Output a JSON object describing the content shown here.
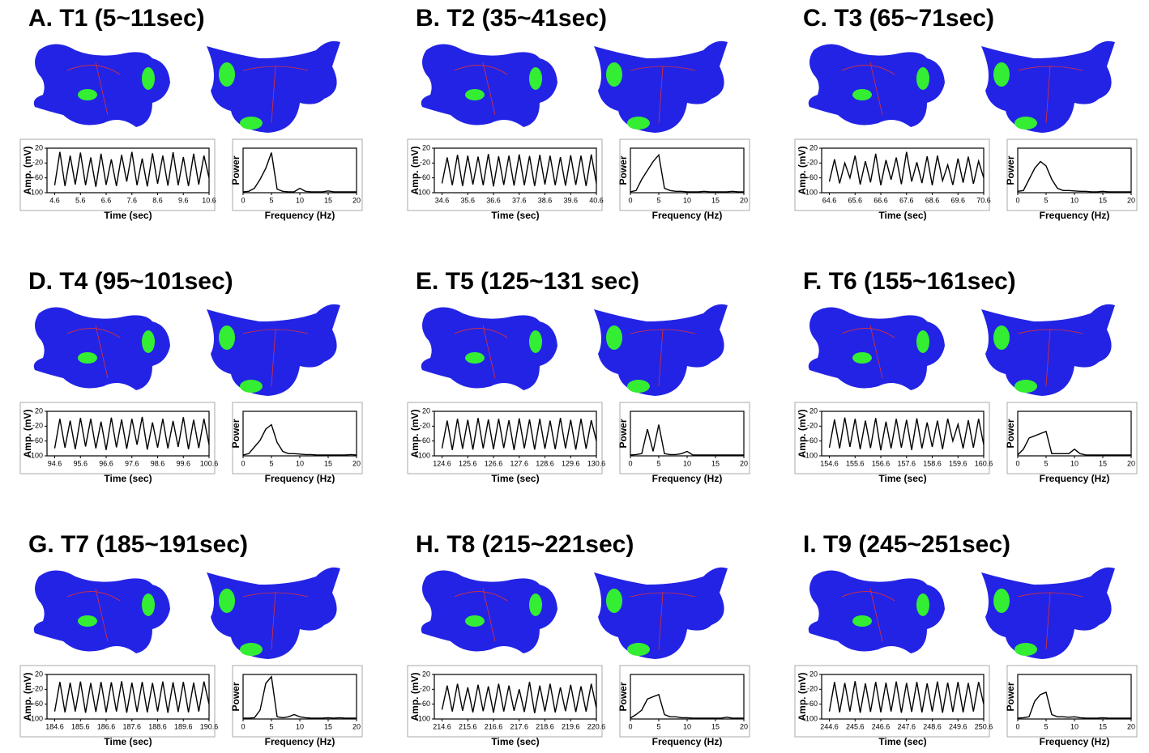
{
  "chart_data": [
    {
      "type": "line",
      "title": "A. T1 (5~11sec)",
      "x": [
        4.6,
        4.8,
        5,
        5.2,
        5.4,
        5.6,
        5.8,
        6,
        6.2,
        6.4,
        6.6,
        6.8,
        7,
        7.2,
        7.4,
        7.6,
        7.8,
        8,
        8.2,
        8.4,
        8.6,
        8.8,
        9,
        9.2,
        9.4,
        9.6,
        9.8,
        10,
        10.2,
        10.4,
        10.6
      ],
      "values": [
        -80,
        10,
        -82,
        0,
        -78,
        8,
        -80,
        -5,
        -84,
        5,
        -79,
        -10,
        -82,
        2,
        -70,
        10,
        -80,
        -8,
        -83,
        6,
        -76,
        0,
        -81,
        9,
        -80,
        -4,
        -82,
        5,
        -78,
        0,
        -60
      ],
      "xlim": [
        4.3,
        10.6
      ],
      "xticks": [
        4.6,
        5.6,
        6.6,
        7.6,
        8.6,
        9.6,
        10.6
      ],
      "ylim": [
        -100,
        20
      ],
      "yticks": [
        20,
        -20,
        -60,
        -100
      ],
      "xlabel": "Time (sec)",
      "ylabel": "Amp. (mV)",
      "color": "#000000"
    },
    {
      "type": "line",
      "x": [
        0,
        1,
        2,
        3,
        4,
        5,
        6,
        7,
        8,
        9,
        10,
        11,
        12,
        13,
        14,
        15,
        16,
        17,
        18,
        19,
        20
      ],
      "values": [
        2,
        3,
        10,
        30,
        55,
        90,
        8,
        3,
        2,
        2,
        10,
        3,
        2,
        2,
        2,
        4,
        2,
        2,
        2,
        2,
        2
      ],
      "xlim": [
        0,
        20
      ],
      "xticks": [
        0,
        5,
        10,
        15,
        20
      ],
      "ylim": [
        0,
        100
      ],
      "xlabel": "Frequency (Hz)",
      "ylabel": "Power",
      "color": "#000000"
    },
    {
      "type": "line",
      "title": "B. T2 (35~41sec)",
      "x": [
        34.6,
        34.8,
        35,
        35.2,
        35.4,
        35.6,
        35.8,
        36,
        36.2,
        36.4,
        36.6,
        36.8,
        37,
        37.2,
        37.4,
        37.6,
        37.8,
        38,
        38.2,
        38.4,
        38.6,
        38.8,
        39,
        39.2,
        39.4,
        39.6,
        39.8,
        40,
        40.2,
        40.4,
        40.6
      ],
      "values": [
        -75,
        -5,
        -80,
        2,
        -82,
        0,
        -78,
        -3,
        -80,
        4,
        -83,
        -2,
        -79,
        0,
        -81,
        3,
        -80,
        -1,
        -82,
        2,
        -78,
        0,
        -80,
        -4,
        -81,
        1,
        -79,
        0,
        -82,
        3,
        -75
      ],
      "xlim": [
        34.3,
        40.6
      ],
      "xticks": [
        34.6,
        35.6,
        36.6,
        37.6,
        38.6,
        39.6,
        40.6
      ],
      "ylim": [
        -100,
        20
      ],
      "yticks": [
        20,
        -20,
        -60,
        -100
      ],
      "xlabel": "Time (sec)",
      "ylabel": "Amp. (mV)",
      "color": "#000000"
    },
    {
      "type": "line",
      "x": [
        0,
        1,
        2,
        3,
        4,
        5,
        6,
        7,
        8,
        9,
        10,
        11,
        12,
        13,
        14,
        15,
        16,
        17,
        18,
        19,
        20
      ],
      "values": [
        2,
        5,
        30,
        50,
        70,
        85,
        10,
        5,
        3,
        3,
        2,
        2,
        2,
        3,
        2,
        2,
        2,
        2,
        3,
        2,
        2
      ],
      "xlim": [
        0,
        20
      ],
      "xticks": [
        0,
        5,
        10,
        15,
        20
      ],
      "ylim": [
        0,
        100
      ],
      "xlabel": "Frequency (Hz)",
      "ylabel": "Power",
      "color": "#000000"
    },
    {
      "type": "line",
      "title": "C. T3 (65~71sec)",
      "x": [
        64.6,
        64.8,
        65,
        65.2,
        65.4,
        65.6,
        65.8,
        66,
        66.2,
        66.4,
        66.6,
        66.8,
        67,
        67.2,
        67.4,
        67.6,
        67.8,
        68,
        68.2,
        68.4,
        68.6,
        68.8,
        69,
        69.2,
        69.4,
        69.6,
        69.8,
        70,
        70.2,
        70.4,
        70.6
      ],
      "values": [
        -70,
        -10,
        -75,
        -20,
        -60,
        0,
        -78,
        -15,
        -72,
        5,
        -80,
        -12,
        -65,
        -5,
        -77,
        10,
        -70,
        -18,
        -74,
        -2,
        -80,
        0,
        -68,
        -25,
        -79,
        -8,
        -73,
        -3,
        -76,
        -15,
        -60
      ],
      "xlim": [
        64.3,
        70.6
      ],
      "xticks": [
        64.6,
        65.6,
        66.6,
        67.6,
        68.6,
        69.6,
        70.6
      ],
      "ylim": [
        -100,
        20
      ],
      "yticks": [
        20,
        -20,
        -60,
        -100
      ],
      "xlabel": "Time (sec)",
      "ylabel": "Amp. (mV)",
      "color": "#000000"
    },
    {
      "type": "line",
      "x": [
        0,
        1,
        2,
        3,
        4,
        5,
        6,
        7,
        8,
        9,
        10,
        11,
        12,
        13,
        14,
        15,
        16,
        17,
        18,
        19,
        20
      ],
      "values": [
        3,
        5,
        30,
        55,
        70,
        60,
        30,
        10,
        5,
        5,
        4,
        3,
        3,
        2,
        2,
        3,
        2,
        2,
        2,
        2,
        2
      ],
      "xlim": [
        0,
        20
      ],
      "xticks": [
        0,
        5,
        10,
        15,
        20
      ],
      "ylim": [
        0,
        100
      ],
      "xlabel": "Frequency (Hz)",
      "ylabel": "Power",
      "color": "#000000"
    },
    {
      "type": "line",
      "title": "D. T4 (95~101sec)",
      "x": [
        94.6,
        94.8,
        95,
        95.2,
        95.4,
        95.6,
        95.8,
        96,
        96.2,
        96.4,
        96.6,
        96.8,
        97,
        97.2,
        97.4,
        97.6,
        97.8,
        98,
        98.2,
        98.4,
        98.6,
        98.8,
        99,
        99.2,
        99.4,
        99.6,
        99.8,
        100,
        100.2,
        100.4,
        100.6
      ],
      "values": [
        -80,
        0,
        -78,
        -5,
        -82,
        2,
        -75,
        0,
        -80,
        -8,
        -84,
        3,
        -77,
        -2,
        -81,
        0,
        -70,
        5,
        -83,
        -10,
        -78,
        0,
        -80,
        -6,
        -76,
        4,
        -82,
        -3,
        -79,
        0,
        -70
      ],
      "xlim": [
        94.3,
        100.6
      ],
      "xticks": [
        94.6,
        95.6,
        96.6,
        97.6,
        98.6,
        99.6,
        100.6
      ],
      "ylim": [
        -100,
        20
      ],
      "yticks": [
        20,
        -20,
        -60,
        -100
      ],
      "xlabel": "Time (sec)",
      "ylabel": "Amp. (mV)",
      "color": "#000000"
    },
    {
      "type": "line",
      "x": [
        0,
        1,
        2,
        3,
        4,
        5,
        6,
        7,
        8,
        9,
        10,
        11,
        12,
        13,
        14,
        15,
        16,
        17,
        18,
        19,
        20
      ],
      "values": [
        2,
        5,
        20,
        35,
        60,
        70,
        30,
        10,
        5,
        5,
        4,
        3,
        3,
        2,
        2,
        2,
        2,
        2,
        2,
        3,
        2
      ],
      "xlim": [
        0,
        20
      ],
      "xticks": [
        0,
        5,
        10,
        15,
        20
      ],
      "ylim": [
        0,
        100
      ],
      "xlabel": "Frequency (Hz)",
      "ylabel": "Power",
      "color": "#000000"
    },
    {
      "type": "line",
      "title": "E. T5 (125~131 sec)",
      "x": [
        124.6,
        124.8,
        125,
        125.2,
        125.4,
        125.6,
        125.8,
        126,
        126.2,
        126.4,
        126.6,
        126.8,
        127,
        127.2,
        127.4,
        127.6,
        127.8,
        128,
        128.2,
        128.4,
        128.6,
        128.8,
        129,
        129.2,
        129.4,
        129.6,
        129.8,
        130,
        130.2,
        130.4,
        130.6
      ],
      "values": [
        -80,
        -5,
        -84,
        0,
        -81,
        -3,
        -83,
        2,
        -80,
        -2,
        -82,
        0,
        -79,
        -4,
        -84,
        1,
        -80,
        -2,
        -83,
        0,
        -81,
        -5,
        -82,
        2,
        -80,
        -3,
        -83,
        0,
        -81,
        -4,
        -60
      ],
      "xlim": [
        124.3,
        130.6
      ],
      "xticks": [
        124.6,
        125.6,
        126.6,
        127.6,
        128.6,
        129.6,
        130.6
      ],
      "ylim": [
        -100,
        20
      ],
      "yticks": [
        20,
        -20,
        -60,
        -100
      ],
      "xlabel": "Time (sec)",
      "ylabel": "Amp. (mV)",
      "color": "#000000"
    },
    {
      "type": "line",
      "x": [
        0,
        1,
        2,
        3,
        4,
        5,
        6,
        7,
        8,
        9,
        10,
        11,
        12,
        13,
        14,
        15,
        16,
        17,
        18,
        19,
        20
      ],
      "values": [
        2,
        3,
        5,
        60,
        10,
        70,
        5,
        3,
        3,
        5,
        10,
        2,
        2,
        2,
        2,
        2,
        2,
        2,
        2,
        2,
        2
      ],
      "xlim": [
        0,
        20
      ],
      "xticks": [
        0,
        5,
        10,
        15,
        20
      ],
      "ylim": [
        0,
        100
      ],
      "xlabel": "Frequency (Hz)",
      "ylabel": "Power",
      "color": "#000000"
    },
    {
      "type": "line",
      "title": "F. T6 (155~161sec)",
      "x": [
        154.6,
        154.8,
        155,
        155.2,
        155.4,
        155.6,
        155.8,
        156,
        156.2,
        156.4,
        156.6,
        156.8,
        157,
        157.2,
        157.4,
        157.6,
        157.8,
        158,
        158.2,
        158.4,
        158.6,
        158.8,
        159,
        159.2,
        159.4,
        159.6,
        159.8,
        160,
        160.2,
        160.4,
        160.6
      ],
      "values": [
        -78,
        -2,
        -80,
        3,
        -76,
        0,
        -82,
        -5,
        -79,
        2,
        -85,
        -8,
        -80,
        0,
        -78,
        -3,
        -84,
        1,
        -80,
        -10,
        -76,
        -5,
        -82,
        0,
        -60,
        -15,
        -80,
        -4,
        -78,
        0,
        -70
      ],
      "xlim": [
        154.3,
        160.6
      ],
      "xticks": [
        154.6,
        155.6,
        156.6,
        157.6,
        158.6,
        159.6,
        160.6
      ],
      "ylim": [
        -100,
        20
      ],
      "yticks": [
        20,
        -20,
        -60,
        -100
      ],
      "xlabel": "Time (sec)",
      "ylabel": "Amp. (mV)",
      "color": "#000000"
    },
    {
      "type": "line",
      "x": [
        0,
        1,
        2,
        3,
        4,
        5,
        6,
        7,
        8,
        9,
        10,
        11,
        12,
        13,
        14,
        15,
        16,
        17,
        18,
        19,
        20
      ],
      "values": [
        2,
        15,
        40,
        45,
        50,
        55,
        5,
        5,
        5,
        5,
        15,
        5,
        2,
        2,
        2,
        2,
        2,
        2,
        2,
        2,
        2
      ],
      "xlim": [
        0,
        20
      ],
      "xticks": [
        0,
        5,
        10,
        15,
        20
      ],
      "ylim": [
        0,
        100
      ],
      "xlabel": "Frequency (Hz)",
      "ylabel": "Power",
      "color": "#000000"
    },
    {
      "type": "line",
      "title": "G. T7 (185~191sec)",
      "x": [
        184.6,
        184.8,
        185,
        185.2,
        185.4,
        185.6,
        185.8,
        186,
        186.2,
        186.4,
        186.6,
        186.8,
        187,
        187.2,
        187.4,
        187.6,
        187.8,
        188,
        188.2,
        188.4,
        188.6,
        188.8,
        189,
        189.2,
        189.4,
        189.6,
        189.8,
        190,
        190.2,
        190.4,
        190.6
      ],
      "values": [
        -80,
        0,
        -82,
        -2,
        -80,
        1,
        -83,
        -3,
        -81,
        0,
        -82,
        -1,
        -80,
        2,
        -83,
        -2,
        -81,
        0,
        -82,
        -3,
        -80,
        1,
        -83,
        -1,
        -81,
        0,
        -82,
        -2,
        -80,
        1,
        -60
      ],
      "xlim": [
        184.3,
        190.6
      ],
      "xticks": [
        184.6,
        185.6,
        186.6,
        187.6,
        188.6,
        189.6,
        190.6
      ],
      "ylim": [
        -100,
        20
      ],
      "yticks": [
        20,
        -20,
        -60,
        -100
      ],
      "xlabel": "Time (sec)",
      "ylabel": "Amp. (mV)",
      "color": "#000000"
    },
    {
      "type": "line",
      "x": [
        0,
        1,
        2,
        3,
        4,
        5,
        6,
        7,
        8,
        9,
        10,
        11,
        12,
        13,
        14,
        15,
        16,
        17,
        18,
        19,
        20
      ],
      "values": [
        2,
        2,
        3,
        20,
        80,
        95,
        5,
        3,
        5,
        10,
        5,
        3,
        2,
        2,
        2,
        3,
        2,
        3,
        2,
        2,
        2
      ],
      "xlim": [
        0,
        20
      ],
      "xticks": [
        0,
        5,
        10,
        15,
        20
      ],
      "ylim": [
        0,
        100
      ],
      "xlabel": "Frequency (Hz)",
      "ylabel": "Power",
      "color": "#000000"
    },
    {
      "type": "line",
      "title": "H. T8 (215~221sec)",
      "x": [
        214.6,
        214.8,
        215,
        215.2,
        215.4,
        215.6,
        215.8,
        216,
        216.2,
        216.4,
        216.6,
        216.8,
        217,
        217.2,
        217.4,
        217.6,
        217.8,
        218,
        218.2,
        218.4,
        218.6,
        218.8,
        219,
        219.2,
        219.4,
        219.6,
        219.8,
        220,
        220.2,
        220.4,
        220.6
      ],
      "values": [
        -75,
        -10,
        -80,
        -5,
        -78,
        -15,
        -82,
        -8,
        -79,
        -12,
        -83,
        -5,
        -80,
        -10,
        -78,
        -20,
        -81,
        0,
        -84,
        -10,
        -80,
        -5,
        -82,
        -15,
        -79,
        -8,
        -81,
        -12,
        -80,
        -5,
        -70
      ],
      "xlim": [
        214.3,
        220.6
      ],
      "xticks": [
        214.6,
        215.6,
        216.6,
        217.6,
        218.6,
        219.6,
        220.6
      ],
      "ylim": [
        -100,
        20
      ],
      "yticks": [
        20,
        -20,
        -60,
        -100
      ],
      "xlabel": "Time (sec)",
      "ylabel": "Amp. (mV)",
      "color": "#000000"
    },
    {
      "type": "line",
      "x": [
        0,
        1,
        2,
        3,
        4,
        5,
        6,
        7,
        8,
        9,
        10,
        11,
        12,
        13,
        14,
        15,
        16,
        17,
        18,
        19,
        20
      ],
      "values": [
        2,
        10,
        20,
        45,
        50,
        55,
        10,
        5,
        5,
        3,
        3,
        2,
        2,
        2,
        2,
        2,
        2,
        4,
        2,
        2,
        2
      ],
      "xlim": [
        0,
        20
      ],
      "xticks": [
        0,
        5,
        10,
        15,
        20
      ],
      "ylim": [
        0,
        100
      ],
      "xlabel": "Frequency (Hz)",
      "ylabel": "Power",
      "color": "#000000"
    },
    {
      "type": "line",
      "title": "I. T9 (245~251sec)",
      "x": [
        244.6,
        244.8,
        245,
        245.2,
        245.4,
        245.6,
        245.8,
        246,
        246.2,
        246.4,
        246.6,
        246.8,
        247,
        247.2,
        247.4,
        247.6,
        247.8,
        248,
        248.2,
        248.4,
        248.6,
        248.8,
        249,
        249.2,
        249.4,
        249.6,
        249.8,
        250,
        250.2,
        250.4,
        250.6
      ],
      "values": [
        -80,
        0,
        -82,
        -3,
        -80,
        2,
        -83,
        -4,
        -81,
        0,
        -82,
        -2,
        -80,
        1,
        -83,
        -3,
        -81,
        0,
        -82,
        -4,
        -80,
        1,
        -83,
        -2,
        -81,
        0,
        -82,
        -3,
        -80,
        0,
        -60
      ],
      "xlim": [
        244.3,
        250.6
      ],
      "xticks": [
        244.6,
        245.6,
        246.6,
        247.6,
        248.6,
        249.6,
        250.6
      ],
      "ylim": [
        -100,
        20
      ],
      "yticks": [
        20,
        -20,
        -60,
        -100
      ],
      "xlabel": "Time (sec)",
      "ylabel": "Amp. (mV)",
      "color": "#000000"
    },
    {
      "type": "line",
      "x": [
        0,
        1,
        2,
        3,
        4,
        5,
        6,
        7,
        8,
        9,
        10,
        11,
        12,
        13,
        14,
        15,
        16,
        17,
        18,
        19,
        20
      ],
      "values": [
        2,
        3,
        5,
        40,
        55,
        60,
        10,
        5,
        5,
        4,
        5,
        3,
        2,
        2,
        2,
        3,
        2,
        2,
        2,
        2,
        2
      ],
      "xlim": [
        0,
        20
      ],
      "xticks": [
        0,
        5,
        10,
        15,
        20
      ],
      "ylim": [
        0,
        100
      ],
      "xlabel": "Frequency (Hz)",
      "ylabel": "Power",
      "color": "#000000"
    }
  ]
}
